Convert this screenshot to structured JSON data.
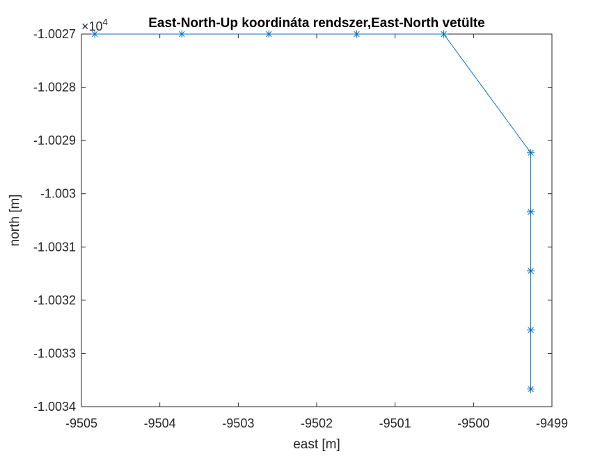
{
  "chart_data": {
    "type": "line",
    "title": "East-North-Up koordináta rendszer,East-North vetülte",
    "xlabel": "east [m]",
    "ylabel": "north [m]",
    "xlim": [
      -9505,
      -9499
    ],
    "ylim": [
      -1.0034,
      -1.0027
    ],
    "y_exponent": "×10",
    "y_exponent_power": "4",
    "xticks": [
      "-9505",
      "-9504",
      "-9503",
      "-9502",
      "-9501",
      "-9500",
      "-9499"
    ],
    "xtick_values": [
      -9505,
      -9504,
      -9503,
      -9502,
      -9501,
      -9500,
      -9499
    ],
    "yticks": [
      "-1.0027",
      "-1.0028",
      "-1.0029",
      "-1.003",
      "-1.0031",
      "-1.0032",
      "-1.0033",
      "-1.0034"
    ],
    "ytick_values": [
      -1.0027,
      -1.0028,
      -1.0029,
      -1.003,
      -1.0031,
      -1.0032,
      -1.0033,
      -1.0034
    ],
    "grid": false,
    "series": [
      {
        "marker": "asterisk",
        "color": "#0072BD",
        "x": [
          -9504.83,
          -9503.72,
          -9502.61,
          -9501.49,
          -9500.38,
          -9499.27,
          -9499.27,
          -9499.27,
          -9499.27,
          -9499.27
        ],
        "y": [
          -1.0027,
          -1.0027,
          -1.0027,
          -1.0027,
          -1.0027,
          -1.002923,
          -1.003034,
          -1.003145,
          -1.003256,
          -1.003367
        ]
      }
    ]
  }
}
